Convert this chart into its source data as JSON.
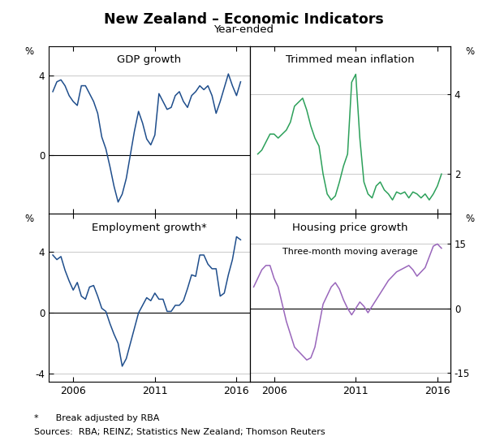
{
  "title": "New Zealand – Economic Indicators",
  "subtitle": "Year-ended",
  "footnote1": "*      Break adjusted by RBA",
  "footnote2": "Sources:  RBA; REINZ; Statistics New Zealand; Thomson Reuters",
  "panels": [
    {
      "title": "GDP growth",
      "position": "top-left",
      "ylim": [
        -3.0,
        5.5
      ],
      "yticks": [
        0,
        4
      ],
      "ytick_labels": [
        "0",
        "4"
      ],
      "color": "#1f4e8c",
      "xlim": [
        2004.5,
        2016.8
      ],
      "xticks": [
        2006,
        2011,
        2016
      ],
      "hlines": [
        0
      ],
      "data_x": [
        2004.75,
        2005.0,
        2005.25,
        2005.5,
        2005.75,
        2006.0,
        2006.25,
        2006.5,
        2006.75,
        2007.0,
        2007.25,
        2007.5,
        2007.75,
        2008.0,
        2008.25,
        2008.5,
        2008.75,
        2009.0,
        2009.25,
        2009.5,
        2009.75,
        2010.0,
        2010.25,
        2010.5,
        2010.75,
        2011.0,
        2011.25,
        2011.5,
        2011.75,
        2012.0,
        2012.25,
        2012.5,
        2012.75,
        2013.0,
        2013.25,
        2013.5,
        2013.75,
        2014.0,
        2014.25,
        2014.5,
        2014.75,
        2015.0,
        2015.25,
        2015.5,
        2015.75,
        2016.0,
        2016.25
      ],
      "data_y": [
        3.2,
        3.7,
        3.8,
        3.5,
        3.0,
        2.7,
        2.5,
        3.5,
        3.5,
        3.1,
        2.7,
        2.1,
        0.9,
        0.3,
        -0.6,
        -1.6,
        -2.4,
        -2.0,
        -1.2,
        0.0,
        1.2,
        2.2,
        1.6,
        0.8,
        0.5,
        1.0,
        3.1,
        2.7,
        2.3,
        2.4,
        3.0,
        3.2,
        2.7,
        2.4,
        3.0,
        3.2,
        3.5,
        3.3,
        3.5,
        3.0,
        2.1,
        2.7,
        3.4,
        4.1,
        3.5,
        3.0,
        3.7
      ]
    },
    {
      "title": "Trimmed mean inflation",
      "position": "top-right",
      "ylim": [
        1.0,
        5.2
      ],
      "yticks": [
        2,
        4
      ],
      "ytick_labels": [
        "2",
        "4"
      ],
      "color": "#2ca05a",
      "xlim": [
        2004.5,
        2016.8
      ],
      "xticks": [
        2006,
        2011,
        2016
      ],
      "hlines": [],
      "data_x": [
        2005.0,
        2005.25,
        2005.5,
        2005.75,
        2006.0,
        2006.25,
        2006.5,
        2006.75,
        2007.0,
        2007.25,
        2007.5,
        2007.75,
        2008.0,
        2008.25,
        2008.5,
        2008.75,
        2009.0,
        2009.25,
        2009.5,
        2009.75,
        2010.0,
        2010.25,
        2010.5,
        2010.75,
        2011.0,
        2011.25,
        2011.5,
        2011.75,
        2012.0,
        2012.25,
        2012.5,
        2012.75,
        2013.0,
        2013.25,
        2013.5,
        2013.75,
        2014.0,
        2014.25,
        2014.5,
        2014.75,
        2015.0,
        2015.25,
        2015.5,
        2015.75,
        2016.0,
        2016.25
      ],
      "data_y": [
        2.5,
        2.6,
        2.8,
        3.0,
        3.0,
        2.9,
        3.0,
        3.1,
        3.3,
        3.7,
        3.8,
        3.9,
        3.6,
        3.2,
        2.9,
        2.7,
        2.0,
        1.5,
        1.35,
        1.45,
        1.8,
        2.2,
        2.5,
        4.3,
        4.5,
        2.9,
        1.8,
        1.5,
        1.4,
        1.7,
        1.8,
        1.6,
        1.5,
        1.35,
        1.55,
        1.5,
        1.55,
        1.4,
        1.55,
        1.5,
        1.4,
        1.5,
        1.35,
        1.5,
        1.7,
        2.0
      ]
    },
    {
      "title": "Employment growth*",
      "position": "bottom-left",
      "ylim": [
        -4.5,
        6.5
      ],
      "yticks": [
        -4,
        0,
        4
      ],
      "ytick_labels": [
        "-4",
        "0",
        "4"
      ],
      "color": "#1f4e8c",
      "xlim": [
        2004.5,
        2016.8
      ],
      "xticks": [
        2006,
        2011,
        2016
      ],
      "hlines": [
        0
      ],
      "data_x": [
        2004.75,
        2005.0,
        2005.25,
        2005.5,
        2005.75,
        2006.0,
        2006.25,
        2006.5,
        2006.75,
        2007.0,
        2007.25,
        2007.5,
        2007.75,
        2008.0,
        2008.25,
        2008.5,
        2008.75,
        2009.0,
        2009.25,
        2009.5,
        2009.75,
        2010.0,
        2010.25,
        2010.5,
        2010.75,
        2011.0,
        2011.25,
        2011.5,
        2011.75,
        2012.0,
        2012.25,
        2012.5,
        2012.75,
        2013.0,
        2013.25,
        2013.5,
        2013.75,
        2014.0,
        2014.25,
        2014.5,
        2014.75,
        2015.0,
        2015.25,
        2015.5,
        2015.75,
        2016.0,
        2016.25
      ],
      "data_y": [
        3.8,
        3.5,
        3.7,
        2.8,
        2.1,
        1.5,
        2.0,
        1.1,
        0.9,
        1.7,
        1.8,
        1.1,
        0.3,
        0.1,
        -0.7,
        -1.4,
        -2.0,
        -3.5,
        -3.0,
        -2.0,
        -1.0,
        0.0,
        0.5,
        1.0,
        0.8,
        1.3,
        0.9,
        0.9,
        0.1,
        0.1,
        0.5,
        0.5,
        0.8,
        1.6,
        2.5,
        2.4,
        3.8,
        3.8,
        3.2,
        2.9,
        2.9,
        1.1,
        1.3,
        2.5,
        3.5,
        5.0,
        4.8
      ]
    },
    {
      "title": "Housing price growth",
      "subtitle": "Three-month moving average",
      "position": "bottom-right",
      "ylim": [
        -17.0,
        22.0
      ],
      "yticks": [
        -15,
        0,
        15
      ],
      "ytick_labels": [
        "-15",
        "0",
        "15"
      ],
      "color": "#9966bb",
      "xlim": [
        2004.5,
        2016.8
      ],
      "xticks": [
        2006,
        2011,
        2016
      ],
      "hlines": [
        0
      ],
      "data_x": [
        2004.75,
        2005.0,
        2005.25,
        2005.5,
        2005.75,
        2006.0,
        2006.25,
        2006.5,
        2006.75,
        2007.0,
        2007.25,
        2007.5,
        2007.75,
        2008.0,
        2008.25,
        2008.5,
        2008.75,
        2009.0,
        2009.25,
        2009.5,
        2009.75,
        2010.0,
        2010.25,
        2010.5,
        2010.75,
        2011.0,
        2011.25,
        2011.5,
        2011.75,
        2012.0,
        2012.25,
        2012.5,
        2012.75,
        2013.0,
        2013.25,
        2013.5,
        2013.75,
        2014.0,
        2014.25,
        2014.5,
        2014.75,
        2015.0,
        2015.25,
        2015.5,
        2015.75,
        2016.0,
        2016.25
      ],
      "data_y": [
        5.0,
        7.0,
        9.0,
        10.0,
        10.0,
        7.0,
        5.0,
        1.0,
        -3.0,
        -6.0,
        -9.0,
        -10.0,
        -11.0,
        -12.0,
        -11.5,
        -9.0,
        -4.0,
        1.0,
        3.0,
        5.0,
        6.0,
        4.5,
        2.0,
        0.0,
        -1.5,
        0.0,
        1.5,
        0.5,
        -1.0,
        0.5,
        2.0,
        3.5,
        5.0,
        6.5,
        7.5,
        8.5,
        9.0,
        9.5,
        10.0,
        9.0,
        7.5,
        8.5,
        9.5,
        12.0,
        14.5,
        15.0,
        14.0
      ]
    }
  ]
}
